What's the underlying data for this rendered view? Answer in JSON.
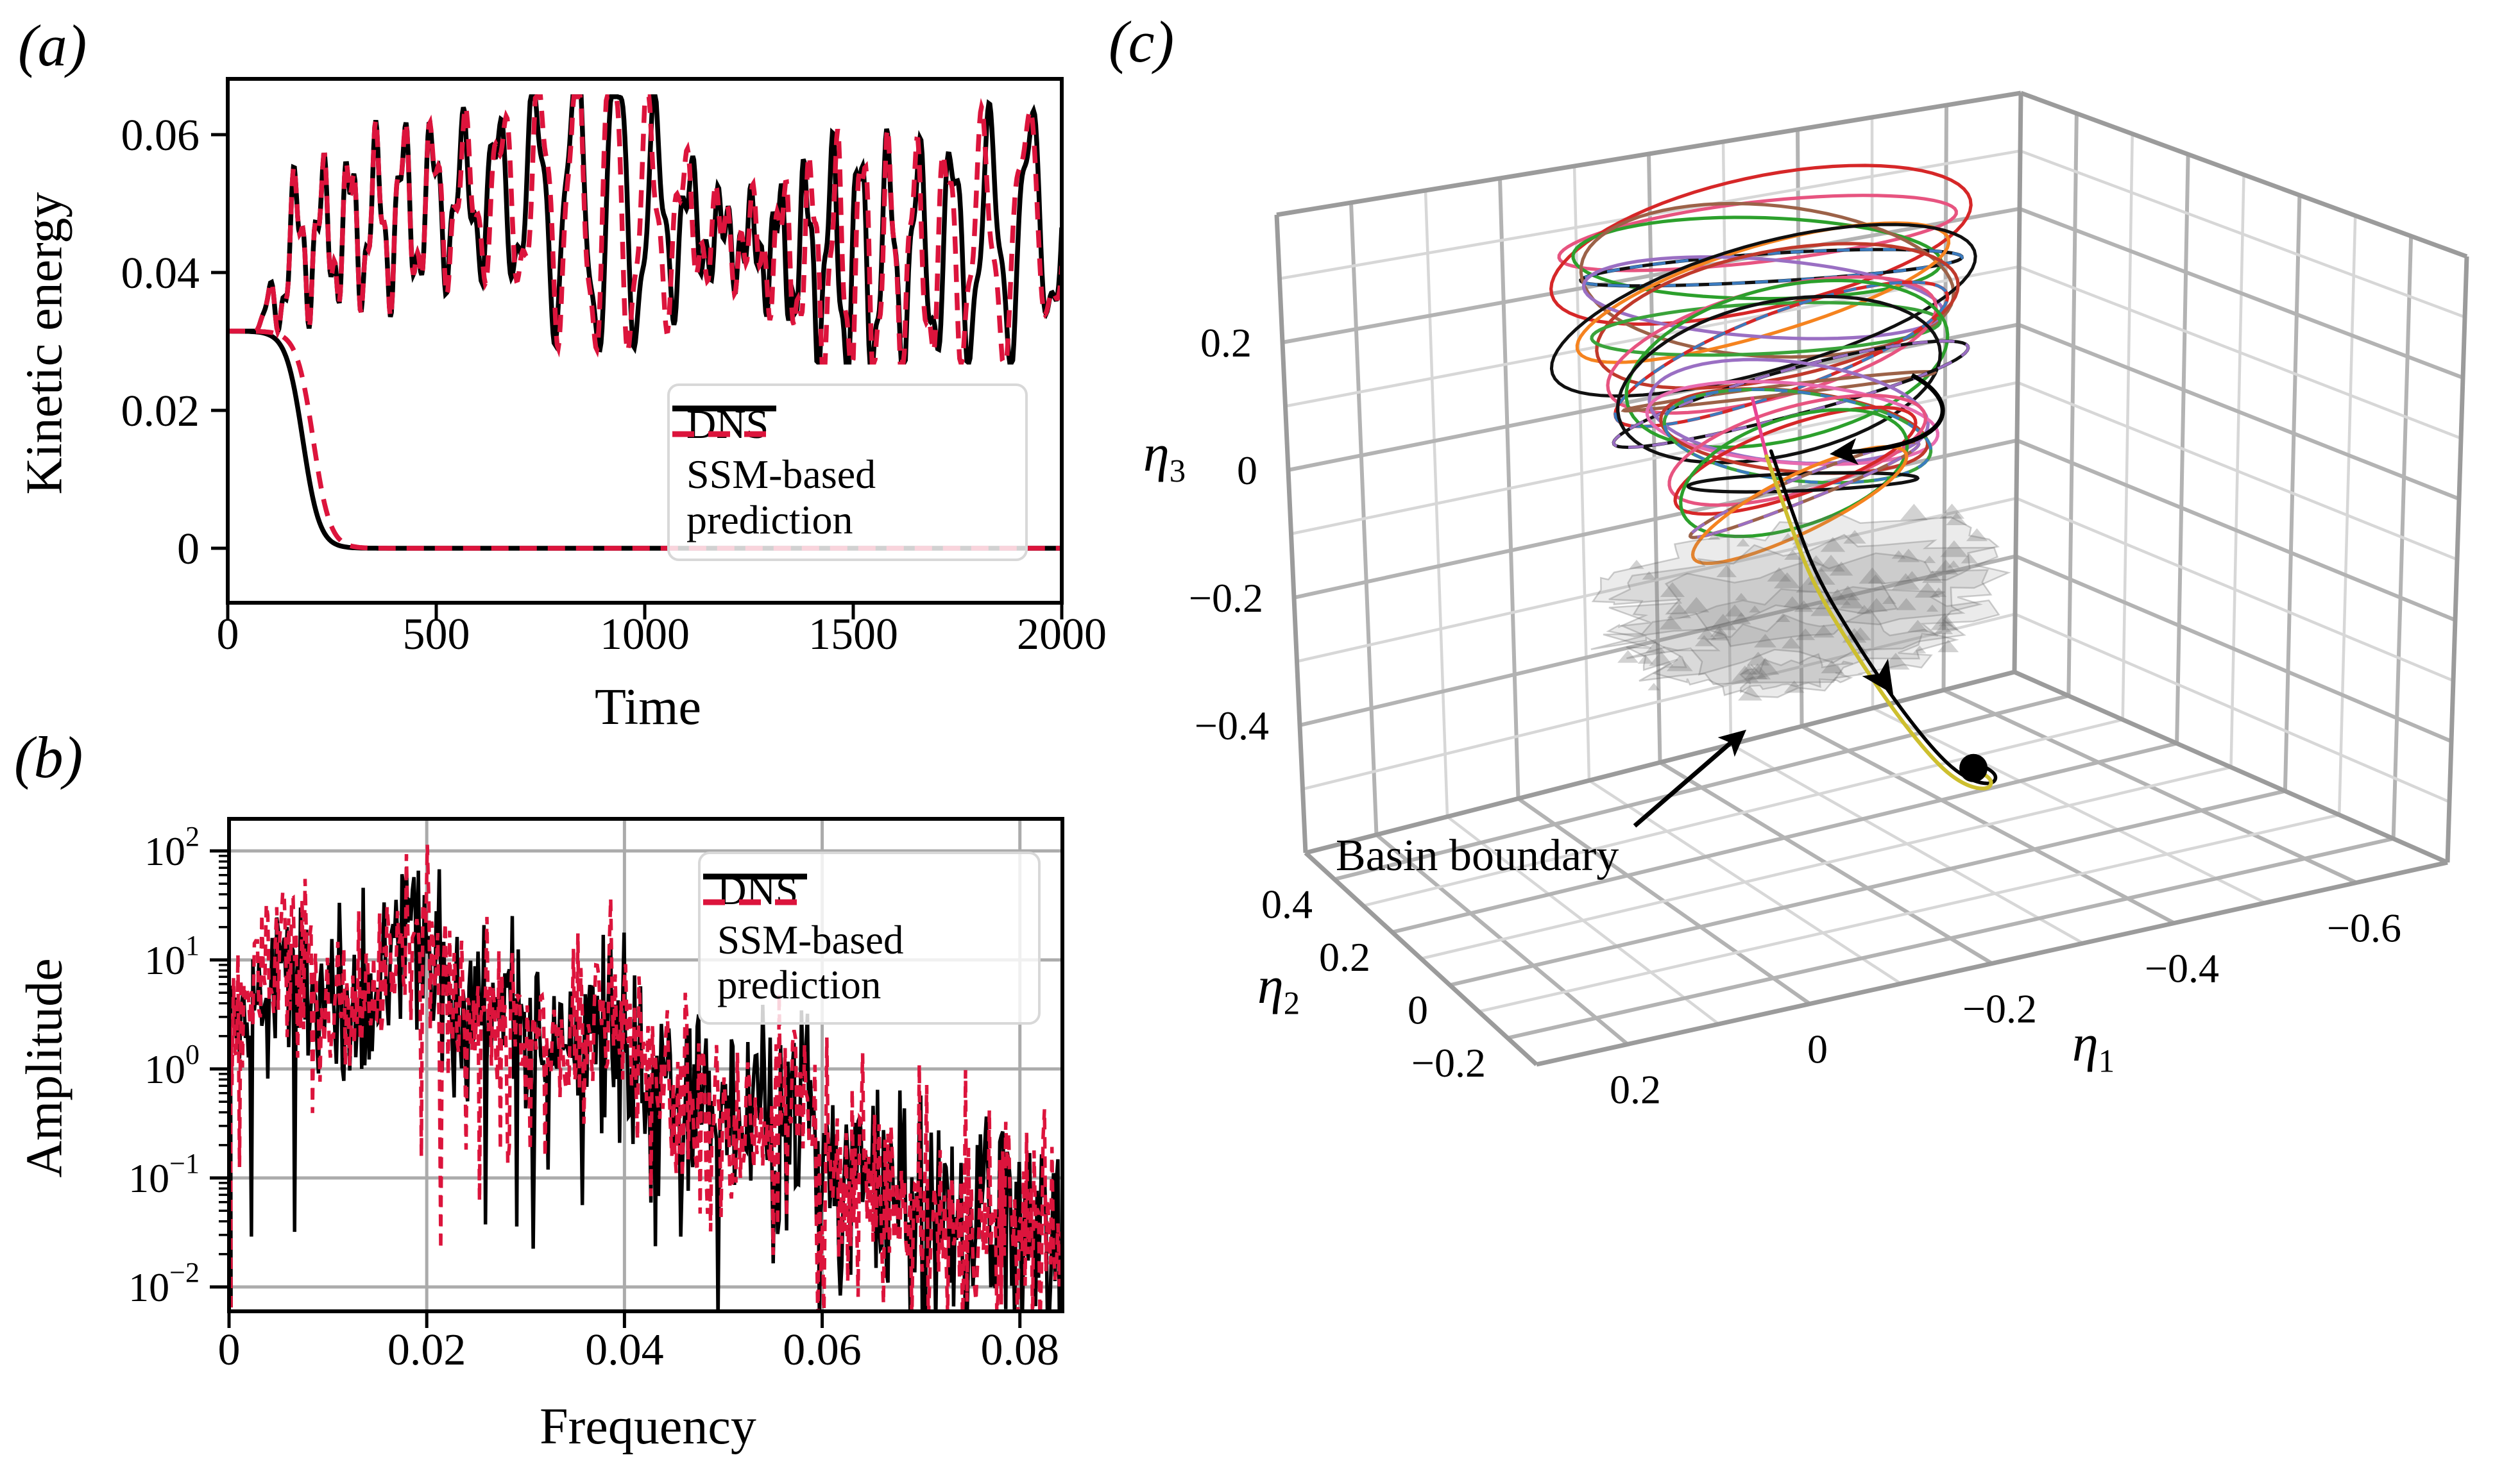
{
  "figure": {
    "background": "#ffffff"
  },
  "panels": {
    "a": {
      "tag": "(a)",
      "xlabel": "Time",
      "ylabel": "Kinetic energy",
      "xticks": [
        "0",
        "500",
        "1000",
        "1500",
        "2000"
      ],
      "yticks": [
        "0",
        "0.02",
        "0.04",
        "0.06"
      ],
      "legend": [
        {
          "label": "DNS",
          "color": "#000000",
          "dash": false
        },
        {
          "label": "SSM-based prediction",
          "lines": [
            "SSM-based",
            "prediction"
          ],
          "color": "#dc143c",
          "dash": true
        }
      ]
    },
    "b": {
      "tag": "(b)",
      "xlabel": "Frequency",
      "ylabel": "Amplitude",
      "xticks": [
        "0",
        "0.02",
        "0.04",
        "0.06",
        "0.08"
      ],
      "ytick_exponents": [
        "2",
        "1",
        "0",
        "−1",
        "−2"
      ],
      "legend": [
        {
          "label": "DNS",
          "color": "#000000",
          "dash": false
        },
        {
          "label": "SSM-based prediction",
          "lines": [
            "SSM-based",
            "prediction"
          ],
          "color": "#dc143c",
          "dash": true
        }
      ]
    },
    "c": {
      "tag": "(c)",
      "annotation": "Basin boundary",
      "axes": {
        "x1": {
          "label": "η",
          "sub": "1",
          "ticks": [
            "0.2",
            "0",
            "−0.2",
            "−0.4",
            "−0.6"
          ]
        },
        "x2": {
          "label": "η",
          "sub": "2",
          "ticks": [
            "0.4",
            "0.2",
            "0",
            "−0.2"
          ]
        },
        "x3": {
          "label": "η",
          "sub": "3",
          "ticks": [
            "0.2",
            "0",
            "−0.2",
            "−0.4"
          ]
        }
      }
    }
  },
  "chart_data": [
    {
      "id": "a",
      "type": "line",
      "title": "",
      "xlabel": "Time",
      "ylabel": "Kinetic energy",
      "xlim": [
        0,
        2000
      ],
      "ylim": [
        -0.002,
        0.068
      ],
      "xticks": [
        0,
        500,
        1000,
        1500,
        2000
      ],
      "yticks": [
        0,
        0.02,
        0.04,
        0.06
      ],
      "grid": false,
      "legend_position": "center right",
      "series": [
        {
          "name": "DNS",
          "color": "#000000",
          "style": "solid",
          "branches": [
            "chaotic",
            "decaying"
          ]
        },
        {
          "name": "SSM-based prediction",
          "color": "#dc143c",
          "style": "dashed",
          "branches": [
            "chaotic",
            "decaying"
          ]
        }
      ],
      "generator": {
        "initial_energy": 0.0315,
        "transition_window": [
          60,
          175
        ],
        "chaotic_band": [
          0.027,
          0.0655
        ],
        "chaotic_mean": 0.0465,
        "oscillation_period": 78,
        "ssm_divergence_after": 350,
        "decay_midpoint_dns": 180,
        "decay_midpoint_ssm": 205,
        "decay_width": 20,
        "seed": 12345
      }
    },
    {
      "id": "b",
      "type": "line",
      "xlabel": "Frequency",
      "ylabel": "Amplitude",
      "xlim": [
        0,
        0.0843
      ],
      "yscale": "log",
      "ylim_log10": [
        -2.35,
        2.55
      ],
      "xticks": [
        0,
        0.02,
        0.04,
        0.06,
        0.08
      ],
      "ytick_decades": [
        2,
        1,
        0,
        -1,
        -2
      ],
      "grid": true,
      "legend_position": "upper right",
      "envelope_log10": [
        [
          0.0,
          0.3
        ],
        [
          0.003,
          0.95
        ],
        [
          0.006,
          1.1
        ],
        [
          0.01,
          0.55
        ],
        [
          0.014,
          0.62
        ],
        [
          0.019,
          1.32
        ],
        [
          0.023,
          0.62
        ],
        [
          0.028,
          0.35
        ],
        [
          0.033,
          0.22
        ],
        [
          0.038,
          0.55
        ],
        [
          0.042,
          0.05
        ],
        [
          0.048,
          -0.4
        ],
        [
          0.052,
          -0.48
        ],
        [
          0.057,
          -0.42
        ],
        [
          0.062,
          -0.95
        ],
        [
          0.07,
          -1.3
        ],
        [
          0.078,
          -1.45
        ],
        [
          0.0843,
          -1.52
        ]
      ],
      "noise_sigma": 0.42,
      "points": 560,
      "series": [
        {
          "name": "DNS",
          "color": "#000000",
          "style": "solid",
          "seed": 77
        },
        {
          "name": "SSM-based prediction",
          "color": "#dc143c",
          "style": "dashed",
          "seed": 991
        }
      ]
    },
    {
      "id": "c",
      "type": "3d-trajectories",
      "axes": {
        "eta1": {
          "range": [
            0.3,
            -0.7
          ],
          "ticks": [
            0.2,
            0,
            -0.2,
            -0.4,
            -0.6
          ]
        },
        "eta2": {
          "range": [
            0.5,
            -0.3
          ],
          "ticks": [
            0.4,
            0.2,
            0,
            -0.2
          ]
        },
        "eta3": {
          "range": [
            -0.6,
            0.4
          ],
          "ticks": [
            0.2,
            0,
            -0.2,
            -0.4
          ]
        }
      },
      "grid_step": 0.1,
      "attractor": {
        "loops": 26,
        "axis_top": [
          -0.22,
          0.3,
          0.33
        ],
        "axis_bottom": [
          -0.13,
          0.02,
          0.02
        ],
        "radius_eta1": [
          0.26,
          0.13
        ],
        "radius_eta2": [
          0.19,
          0.1
        ],
        "tilt": 0.05,
        "colors": [
          "#e75480",
          "#d62728",
          "#2ca02c",
          "#111111",
          "#9c6248",
          "#f5831f",
          "#9a6fc3",
          "#e86bb0",
          "#c0392b",
          "#3aa33a"
        ],
        "dashed_overlay_color": "#3b7bbf",
        "seed": 4242
      },
      "basin_boundary": {
        "center": [
          -0.15,
          0.08,
          -0.16
        ],
        "radii": [
          0.21,
          0.16,
          0.12
        ],
        "color": "#8f8f8f",
        "opacity": 0.45,
        "seed": 777
      },
      "fixed_point": [
        -0.3,
        -0.048,
        -0.42
      ],
      "escape_trajectory": {
        "colors": {
          "ssm": "#cdbf2e",
          "dns": "#000000",
          "feeder": "#e84393"
        },
        "waypoints": [
          [
            -0.135,
            0.115,
            0.06
          ],
          [
            -0.15,
            0.09,
            -0.04
          ],
          [
            -0.165,
            0.065,
            -0.13
          ],
          [
            -0.195,
            0.03,
            -0.23
          ],
          [
            -0.23,
            -0.005,
            -0.33
          ],
          [
            -0.265,
            -0.033,
            -0.41
          ],
          [
            -0.29,
            -0.047,
            -0.445
          ],
          [
            -0.312,
            -0.058,
            -0.455
          ],
          [
            -0.318,
            -0.058,
            -0.44
          ],
          [
            -0.3,
            -0.048,
            -0.42
          ]
        ],
        "feeder": [
          [
            -0.138,
            0.155,
            0.14
          ],
          [
            -0.135,
            0.115,
            0.06
          ]
        ]
      },
      "annotation": {
        "text": "Basin boundary"
      }
    }
  ]
}
